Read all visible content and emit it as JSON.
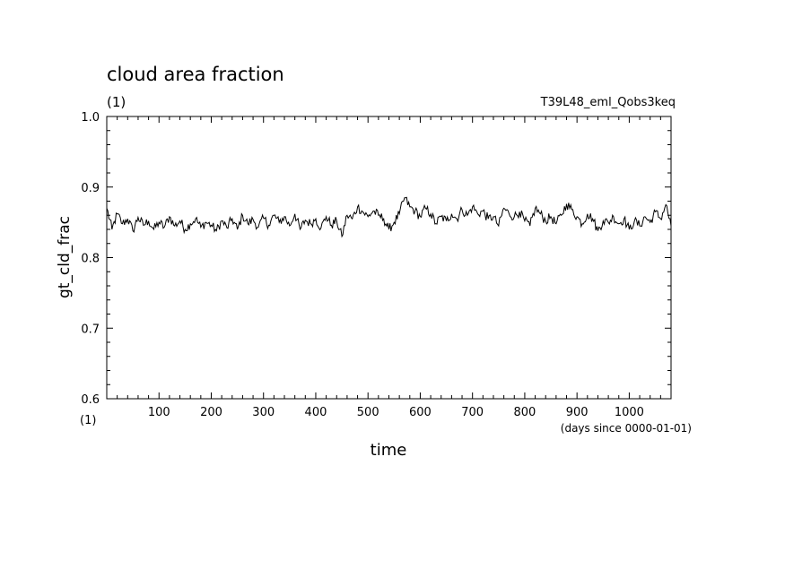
{
  "chart_data": {
    "type": "line",
    "title": "cloud area fraction",
    "subtitle": "(1)",
    "run_label": "T39L48_eml_Qobs3keq",
    "ylabel": "gt_cld_frac",
    "xlabel": "time",
    "x_units": "(days since 0000-01-01)",
    "y_units_tick": "(1)",
    "xlim": [
      0,
      1080
    ],
    "ylim": [
      0.6,
      1.0
    ],
    "x_ticks": [
      100,
      200,
      300,
      400,
      500,
      600,
      700,
      800,
      900,
      1000
    ],
    "x_tick_labels": [
      "100",
      "200",
      "300",
      "400",
      "500",
      "600",
      "700",
      "800",
      "900",
      "1000"
    ],
    "y_ticks": [
      0.6,
      0.7,
      0.8,
      0.9,
      1.0
    ],
    "y_tick_labels": [
      "0.6",
      "0.7",
      "0.8",
      "0.9",
      "1.0"
    ],
    "grid": false,
    "line_color": "#000000",
    "series": [
      {
        "x": [
          0,
          10,
          20,
          30,
          40,
          50,
          60,
          70,
          80,
          90,
          100,
          110,
          120,
          130,
          140,
          150,
          160,
          170,
          180,
          190,
          200,
          210,
          220,
          230,
          240,
          250,
          260,
          270,
          280,
          290,
          300,
          310,
          320,
          330,
          340,
          350,
          360,
          370,
          380,
          390,
          400,
          410,
          420,
          430,
          440,
          450,
          460,
          470,
          480,
          490,
          500,
          510,
          520,
          530,
          540,
          550,
          560,
          570,
          580,
          590,
          600,
          610,
          620,
          630,
          640,
          650,
          660,
          670,
          680,
          690,
          700,
          710,
          720,
          730,
          740,
          750,
          760,
          770,
          780,
          790,
          800,
          810,
          820,
          830,
          840,
          850,
          860,
          870,
          880,
          890,
          900,
          910,
          920,
          930,
          940,
          950,
          960,
          970,
          980,
          990,
          1000,
          1010,
          1020,
          1030,
          1040,
          1050,
          1060,
          1070,
          1080
        ],
        "values": [
          0.87,
          0.84,
          0.862,
          0.848,
          0.855,
          0.838,
          0.857,
          0.846,
          0.852,
          0.84,
          0.85,
          0.843,
          0.858,
          0.845,
          0.852,
          0.84,
          0.848,
          0.855,
          0.843,
          0.85,
          0.846,
          0.838,
          0.852,
          0.842,
          0.855,
          0.84,
          0.86,
          0.848,
          0.854,
          0.843,
          0.856,
          0.846,
          0.86,
          0.85,
          0.858,
          0.845,
          0.862,
          0.84,
          0.853,
          0.848,
          0.855,
          0.842,
          0.858,
          0.846,
          0.852,
          0.83,
          0.86,
          0.855,
          0.872,
          0.865,
          0.858,
          0.866,
          0.86,
          0.855,
          0.84,
          0.85,
          0.862,
          0.885,
          0.872,
          0.866,
          0.858,
          0.87,
          0.862,
          0.848,
          0.858,
          0.852,
          0.862,
          0.855,
          0.868,
          0.86,
          0.872,
          0.862,
          0.866,
          0.855,
          0.858,
          0.845,
          0.87,
          0.862,
          0.858,
          0.865,
          0.852,
          0.845,
          0.87,
          0.862,
          0.852,
          0.858,
          0.848,
          0.86,
          0.876,
          0.868,
          0.858,
          0.848,
          0.862,
          0.855,
          0.838,
          0.852,
          0.85,
          0.858,
          0.848,
          0.855,
          0.84,
          0.852,
          0.845,
          0.858,
          0.85,
          0.865,
          0.855,
          0.875,
          0.845
        ]
      }
    ]
  }
}
